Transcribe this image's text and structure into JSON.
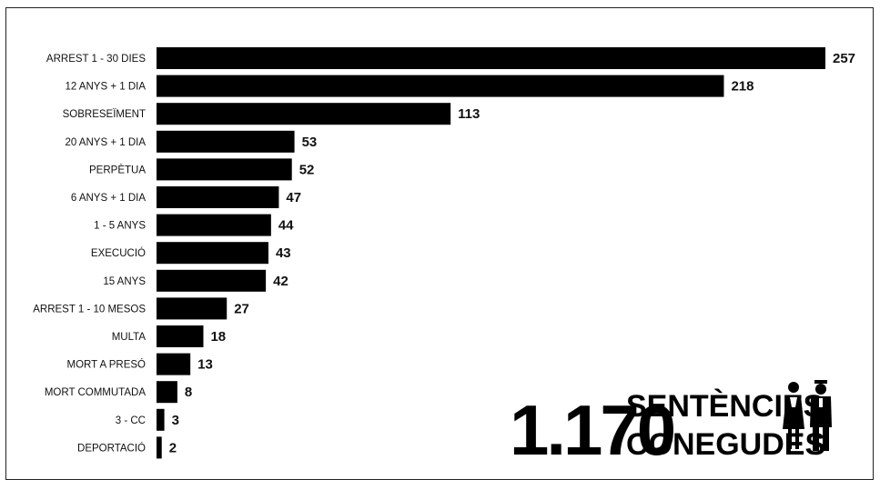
{
  "chart_data": {
    "type": "bar",
    "orientation": "horizontal",
    "categories": [
      "ARREST 1 - 30 DIES",
      "12 ANYS + 1 DIA",
      "SOBRESEÏMENT",
      "20 ANYS + 1 DIA",
      "PERPÈTUA",
      "6 ANYS + 1 DIA",
      "1 - 5 ANYS",
      "EXECUCIÓ",
      "15 ANYS",
      "ARREST 1 - 10 MESOS",
      "MULTA",
      "MORT A PRESÓ",
      "MORT COMMUTADA",
      "3 - CC",
      "DEPORTACIÓ"
    ],
    "values": [
      257,
      218,
      113,
      53,
      52,
      47,
      44,
      43,
      42,
      27,
      18,
      13,
      8,
      3,
      2
    ],
    "bar_color": "#000000"
  },
  "headline": {
    "number": "1.170",
    "line1": "SENTÈNCIES",
    "line2": "CONEGUDES",
    "icon": "man-and-woman-icon"
  }
}
